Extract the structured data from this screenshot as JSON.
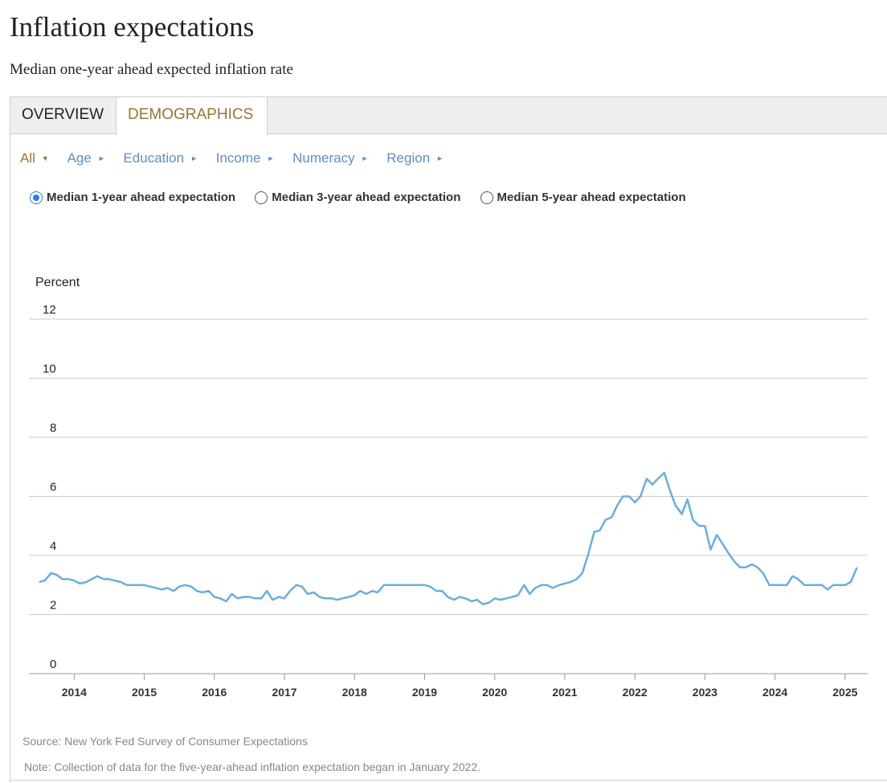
{
  "header": {
    "title": "Inflation expectations",
    "subtitle": "Median one-year ahead expected inflation rate"
  },
  "tabs": [
    {
      "label": "OVERVIEW",
      "active": false
    },
    {
      "label": "DEMOGRAPHICS",
      "active": true
    }
  ],
  "filters": [
    {
      "label": "All",
      "active": true,
      "indicator": "▼"
    },
    {
      "label": "Age",
      "active": false,
      "indicator": "►"
    },
    {
      "label": "Education",
      "active": false,
      "indicator": "►"
    },
    {
      "label": "Income",
      "active": false,
      "indicator": "►"
    },
    {
      "label": "Numeracy",
      "active": false,
      "indicator": "►"
    },
    {
      "label": "Region",
      "active": false,
      "indicator": "►"
    }
  ],
  "horizons": [
    {
      "label": "Median 1-year ahead expectation",
      "selected": true
    },
    {
      "label": "Median 3-year ahead expectation",
      "selected": false
    },
    {
      "label": "Median 5-year ahead expectation",
      "selected": false
    }
  ],
  "colors": {
    "line": "#6aaedc",
    "accent": "#9a7434",
    "link": "#5b8fc4",
    "grid": "#cccccc"
  },
  "chart_data": {
    "type": "line",
    "ylabel": "Percent",
    "ylim": [
      0,
      12
    ],
    "yticks": [
      0,
      2,
      4,
      6,
      8,
      10,
      12
    ],
    "xlim": [
      2013.4,
      2025.3
    ],
    "xticks": [
      2014,
      2015,
      2016,
      2017,
      2018,
      2019,
      2020,
      2021,
      2022,
      2023,
      2024,
      2025
    ],
    "grid": true,
    "series": [
      {
        "values": [
          [
            2013.5,
            3.1
          ],
          [
            2013.58,
            3.15
          ],
          [
            2013.67,
            3.4
          ],
          [
            2013.75,
            3.35
          ],
          [
            2013.83,
            3.2
          ],
          [
            2013.92,
            3.2
          ],
          [
            2014.0,
            3.15
          ],
          [
            2014.08,
            3.05
          ],
          [
            2014.17,
            3.1
          ],
          [
            2014.25,
            3.2
          ],
          [
            2014.33,
            3.3
          ],
          [
            2014.42,
            3.2
          ],
          [
            2014.5,
            3.2
          ],
          [
            2014.58,
            3.15
          ],
          [
            2014.67,
            3.1
          ],
          [
            2014.75,
            3.0
          ],
          [
            2014.83,
            3.0
          ],
          [
            2014.92,
            3.0
          ],
          [
            2015.0,
            3.0
          ],
          [
            2015.08,
            2.95
          ],
          [
            2015.17,
            2.9
          ],
          [
            2015.25,
            2.85
          ],
          [
            2015.33,
            2.9
          ],
          [
            2015.42,
            2.8
          ],
          [
            2015.5,
            2.95
          ],
          [
            2015.58,
            3.0
          ],
          [
            2015.67,
            2.95
          ],
          [
            2015.75,
            2.8
          ],
          [
            2015.83,
            2.75
          ],
          [
            2015.92,
            2.8
          ],
          [
            2016.0,
            2.6
          ],
          [
            2016.08,
            2.55
          ],
          [
            2016.17,
            2.45
          ],
          [
            2016.25,
            2.7
          ],
          [
            2016.33,
            2.55
          ],
          [
            2016.42,
            2.6
          ],
          [
            2016.5,
            2.6
          ],
          [
            2016.58,
            2.55
          ],
          [
            2016.67,
            2.55
          ],
          [
            2016.75,
            2.8
          ],
          [
            2016.83,
            2.5
          ],
          [
            2016.92,
            2.6
          ],
          [
            2017.0,
            2.55
          ],
          [
            2017.08,
            2.8
          ],
          [
            2017.17,
            3.0
          ],
          [
            2017.25,
            2.95
          ],
          [
            2017.33,
            2.7
          ],
          [
            2017.42,
            2.75
          ],
          [
            2017.5,
            2.6
          ],
          [
            2017.58,
            2.55
          ],
          [
            2017.67,
            2.55
          ],
          [
            2017.75,
            2.5
          ],
          [
            2017.83,
            2.55
          ],
          [
            2017.92,
            2.6
          ],
          [
            2018.0,
            2.65
          ],
          [
            2018.08,
            2.8
          ],
          [
            2018.17,
            2.7
          ],
          [
            2018.25,
            2.8
          ],
          [
            2018.33,
            2.75
          ],
          [
            2018.42,
            3.0
          ],
          [
            2018.5,
            3.0
          ],
          [
            2018.58,
            3.0
          ],
          [
            2018.67,
            3.0
          ],
          [
            2018.75,
            3.0
          ],
          [
            2018.83,
            3.0
          ],
          [
            2018.92,
            3.0
          ],
          [
            2019.0,
            3.0
          ],
          [
            2019.08,
            2.95
          ],
          [
            2019.17,
            2.8
          ],
          [
            2019.25,
            2.8
          ],
          [
            2019.33,
            2.6
          ],
          [
            2019.42,
            2.5
          ],
          [
            2019.5,
            2.6
          ],
          [
            2019.58,
            2.55
          ],
          [
            2019.67,
            2.45
          ],
          [
            2019.75,
            2.5
          ],
          [
            2019.83,
            2.35
          ],
          [
            2019.92,
            2.4
          ],
          [
            2020.0,
            2.55
          ],
          [
            2020.08,
            2.5
          ],
          [
            2020.17,
            2.55
          ],
          [
            2020.25,
            2.6
          ],
          [
            2020.33,
            2.65
          ],
          [
            2020.42,
            3.0
          ],
          [
            2020.5,
            2.7
          ],
          [
            2020.58,
            2.9
          ],
          [
            2020.67,
            3.0
          ],
          [
            2020.75,
            3.0
          ],
          [
            2020.83,
            2.9
          ],
          [
            2020.92,
            3.0
          ],
          [
            2021.0,
            3.05
          ],
          [
            2021.08,
            3.1
          ],
          [
            2021.17,
            3.2
          ],
          [
            2021.25,
            3.4
          ],
          [
            2021.33,
            4.0
          ],
          [
            2021.42,
            4.8
          ],
          [
            2021.5,
            4.85
          ],
          [
            2021.58,
            5.2
          ],
          [
            2021.67,
            5.3
          ],
          [
            2021.75,
            5.7
          ],
          [
            2021.83,
            6.0
          ],
          [
            2021.92,
            6.0
          ],
          [
            2022.0,
            5.8
          ],
          [
            2022.08,
            6.0
          ],
          [
            2022.17,
            6.6
          ],
          [
            2022.25,
            6.4
          ],
          [
            2022.33,
            6.6
          ],
          [
            2022.42,
            6.8
          ],
          [
            2022.5,
            6.2
          ],
          [
            2022.58,
            5.7
          ],
          [
            2022.67,
            5.4
          ],
          [
            2022.75,
            5.9
          ],
          [
            2022.83,
            5.2
          ],
          [
            2022.92,
            5.0
          ],
          [
            2023.0,
            5.0
          ],
          [
            2023.08,
            4.2
          ],
          [
            2023.17,
            4.7
          ],
          [
            2023.25,
            4.4
          ],
          [
            2023.33,
            4.1
          ],
          [
            2023.42,
            3.8
          ],
          [
            2023.5,
            3.6
          ],
          [
            2023.58,
            3.6
          ],
          [
            2023.67,
            3.7
          ],
          [
            2023.75,
            3.6
          ],
          [
            2023.83,
            3.4
          ],
          [
            2023.92,
            3.0
          ],
          [
            2024.0,
            3.0
          ],
          [
            2024.08,
            3.0
          ],
          [
            2024.17,
            3.0
          ],
          [
            2024.25,
            3.3
          ],
          [
            2024.33,
            3.2
          ],
          [
            2024.42,
            3.0
          ],
          [
            2024.5,
            3.0
          ],
          [
            2024.58,
            3.0
          ],
          [
            2024.67,
            3.0
          ],
          [
            2024.75,
            2.85
          ],
          [
            2024.83,
            3.0
          ],
          [
            2024.92,
            3.0
          ],
          [
            2025.0,
            3.0
          ],
          [
            2025.08,
            3.1
          ],
          [
            2025.17,
            3.6
          ]
        ]
      }
    ]
  },
  "footer": {
    "source": "Source: New York Fed Survey of Consumer Expectations",
    "note": "Note: Collection of data for the five-year-ahead inflation expectation began in January 2022."
  }
}
